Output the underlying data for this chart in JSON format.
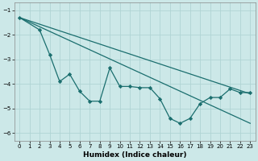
{
  "xlabel": "Humidex (Indice chaleur)",
  "bg_color": "#cce8e8",
  "line_color": "#1a6e6e",
  "grid_color": "#b0d4d4",
  "xlim": [
    -0.5,
    23.5
  ],
  "ylim": [
    -6.3,
    -0.7
  ],
  "yticks": [
    -6,
    -5,
    -4,
    -3,
    -2,
    -1
  ],
  "xticks": [
    0,
    1,
    2,
    3,
    4,
    5,
    6,
    7,
    8,
    9,
    10,
    11,
    12,
    13,
    14,
    15,
    16,
    17,
    18,
    19,
    20,
    21,
    22,
    23
  ],
  "jagged_x": [
    0,
    2,
    3,
    4,
    5,
    6,
    7,
    8,
    9,
    10,
    11,
    12,
    13,
    14,
    15,
    16,
    17,
    18,
    19,
    20,
    21,
    22,
    23
  ],
  "jagged_y": [
    -1.3,
    -1.8,
    -2.8,
    -3.9,
    -3.6,
    -4.3,
    -4.7,
    -4.7,
    -3.35,
    -4.1,
    -4.1,
    -4.15,
    -4.15,
    -4.6,
    -5.4,
    -5.6,
    -5.4,
    -4.8,
    -4.55,
    -4.55,
    -4.2,
    -4.35,
    -4.35
  ],
  "line1_x": [
    0,
    23
  ],
  "line1_y": [
    -1.3,
    -4.4
  ],
  "line2_x": [
    0,
    23
  ],
  "line2_y": [
    -1.3,
    -5.6
  ]
}
